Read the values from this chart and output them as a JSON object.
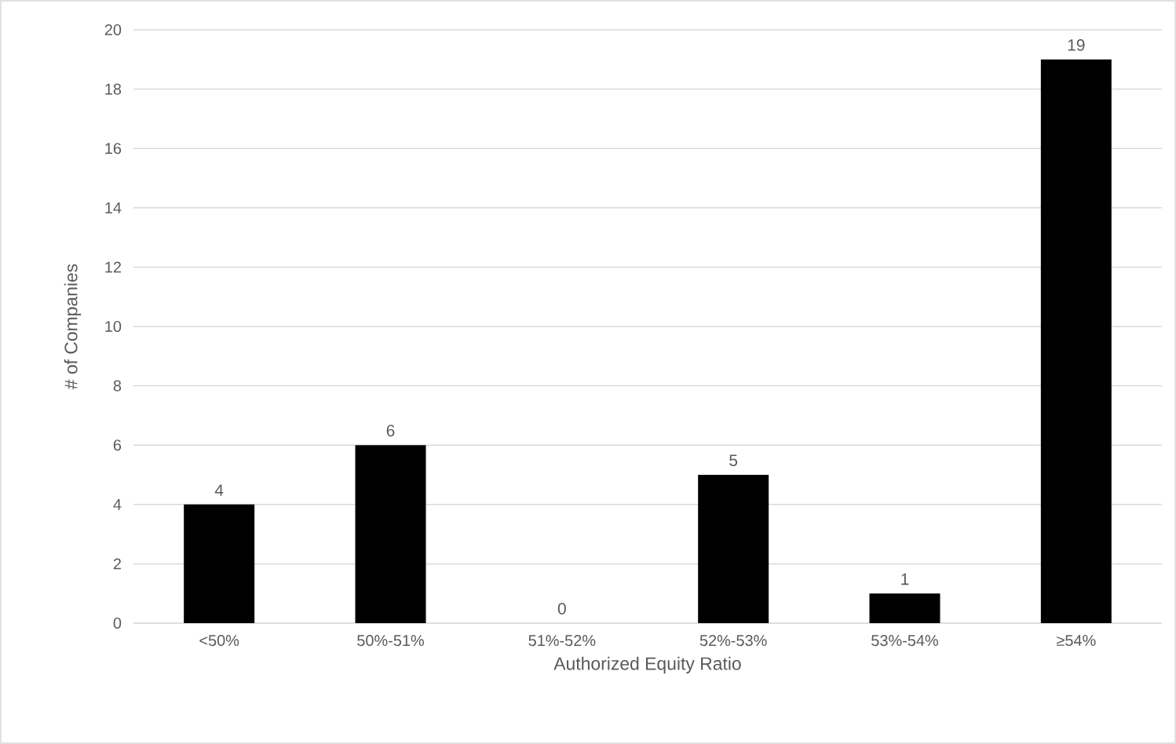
{
  "chart_data": {
    "type": "bar",
    "xlabel": "Authorized Equity Ratio",
    "ylabel": "# of Companies",
    "categories": [
      "<50%",
      "50%-51%",
      "51%-52%",
      "52%-53%",
      "53%-54%",
      "≥54%"
    ],
    "values": [
      4,
      6,
      0,
      5,
      1,
      19
    ],
    "color": "#000000",
    "ylim": [
      0,
      20
    ],
    "yticks": [
      0,
      2,
      4,
      6,
      8,
      10,
      12,
      14,
      16,
      18,
      20
    ],
    "grid": "y",
    "data_labels": true
  }
}
